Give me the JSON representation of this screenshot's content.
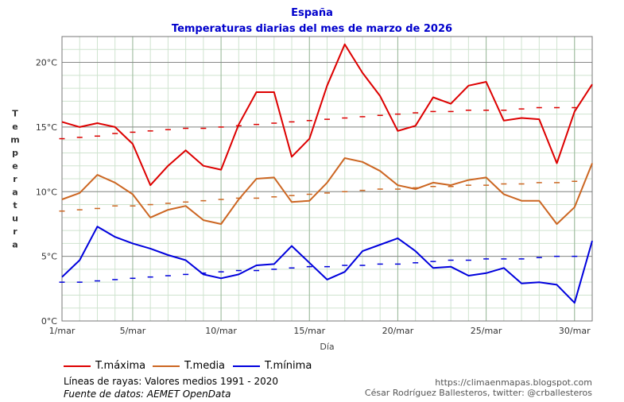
{
  "header": {
    "title": "España",
    "subtitle": "Temperaturas diarias del mes de marzo de 2026"
  },
  "chart_data": {
    "type": "line",
    "title": "Temperaturas diarias del mes de marzo de 2026",
    "xlabel": "Día",
    "ylabel": "Temperatura",
    "xlim": [
      1,
      31
    ],
    "ylim": [
      0,
      22
    ],
    "grid": true,
    "x_ticks": [
      {
        "day": 1,
        "label": "1/mar"
      },
      {
        "day": 5,
        "label": "5/mar"
      },
      {
        "day": 10,
        "label": "10/mar"
      },
      {
        "day": 15,
        "label": "15/mar"
      },
      {
        "day": 20,
        "label": "20/mar"
      },
      {
        "day": 25,
        "label": "25/mar"
      },
      {
        "day": 30,
        "label": "30/mar"
      }
    ],
    "y_ticks": [
      {
        "value": 0,
        "label": "0°C"
      },
      {
        "value": 5,
        "label": "5°C"
      },
      {
        "value": 10,
        "label": "10°C"
      },
      {
        "value": 15,
        "label": "15°C"
      },
      {
        "value": 20,
        "label": "20°C"
      }
    ],
    "x": [
      1,
      2,
      3,
      4,
      5,
      6,
      7,
      8,
      9,
      10,
      11,
      12,
      13,
      14,
      15,
      16,
      17,
      18,
      19,
      20,
      21,
      22,
      23,
      24,
      25,
      26,
      27,
      28,
      29,
      30,
      31
    ],
    "series": [
      {
        "name": "T.máxima",
        "color": "#dd0000",
        "values": [
          15.4,
          15.0,
          15.3,
          15.0,
          13.7,
          10.5,
          12.0,
          13.2,
          12.0,
          11.7,
          15.2,
          17.7,
          17.7,
          12.7,
          14.1,
          18.2,
          21.4,
          19.2,
          17.4,
          14.7,
          15.1,
          17.3,
          16.8,
          18.2,
          18.5,
          15.5,
          15.7,
          15.6,
          12.2,
          16.2,
          18.3
        ]
      },
      {
        "name": "T.media",
        "color": "#cc6622",
        "values": [
          9.4,
          9.9,
          11.3,
          10.7,
          9.8,
          8.0,
          8.6,
          8.9,
          7.8,
          7.5,
          9.4,
          11.0,
          11.1,
          9.2,
          9.3,
          10.7,
          12.6,
          12.3,
          11.6,
          10.5,
          10.2,
          10.7,
          10.5,
          10.9,
          11.1,
          9.8,
          9.3,
          9.3,
          7.5,
          8.8,
          12.2
        ]
      },
      {
        "name": "T.mínima",
        "color": "#0000dd",
        "values": [
          3.4,
          4.7,
          7.3,
          6.5,
          6.0,
          5.6,
          5.1,
          4.7,
          3.6,
          3.3,
          3.6,
          4.3,
          4.4,
          5.8,
          4.5,
          3.2,
          3.8,
          5.4,
          5.9,
          6.4,
          5.4,
          4.1,
          4.2,
          3.5,
          3.7,
          4.1,
          2.9,
          3.0,
          2.8,
          1.4,
          6.2
        ]
      }
    ],
    "normals": [
      {
        "name": "T.máxima media 1991-2020",
        "color": "#dd0000",
        "values": [
          14.1,
          14.2,
          14.3,
          14.5,
          14.6,
          14.7,
          14.8,
          14.9,
          14.9,
          15.0,
          15.1,
          15.2,
          15.3,
          15.4,
          15.5,
          15.6,
          15.7,
          15.8,
          15.9,
          16.0,
          16.1,
          16.2,
          16.2,
          16.3,
          16.3,
          16.3,
          16.4,
          16.5,
          16.5,
          16.5
        ]
      },
      {
        "name": "T.media media 1991-2020",
        "color": "#cc6622",
        "values": [
          8.5,
          8.6,
          8.7,
          8.9,
          8.9,
          9.0,
          9.1,
          9.2,
          9.3,
          9.4,
          9.5,
          9.5,
          9.6,
          9.7,
          9.8,
          9.9,
          10.0,
          10.1,
          10.2,
          10.2,
          10.3,
          10.4,
          10.4,
          10.5,
          10.5,
          10.6,
          10.6,
          10.7,
          10.7,
          10.8
        ]
      },
      {
        "name": "T.mínima media 1991-2020",
        "color": "#0000dd",
        "values": [
          3.0,
          3.0,
          3.1,
          3.2,
          3.3,
          3.4,
          3.5,
          3.6,
          3.7,
          3.8,
          3.9,
          3.9,
          4.0,
          4.1,
          4.2,
          4.2,
          4.3,
          4.3,
          4.4,
          4.4,
          4.5,
          4.6,
          4.7,
          4.7,
          4.8,
          4.8,
          4.8,
          4.9,
          5.0,
          5.0
        ]
      }
    ]
  },
  "legend": {
    "items": [
      {
        "label": "T.máxima",
        "color": "#dd0000"
      },
      {
        "label": "T.media",
        "color": "#cc6622"
      },
      {
        "label": "T.mínima",
        "color": "#0000dd"
      }
    ]
  },
  "notes": {
    "dashed": "Líneas de rayas: Valores medios 1991 - 2020",
    "source": "Fuente de datos: AEMET OpenData"
  },
  "credits": {
    "url": "https://climaenmapas.blogspot.com",
    "author": "César Rodríguez Ballesteros, twitter: @crballesteros"
  }
}
